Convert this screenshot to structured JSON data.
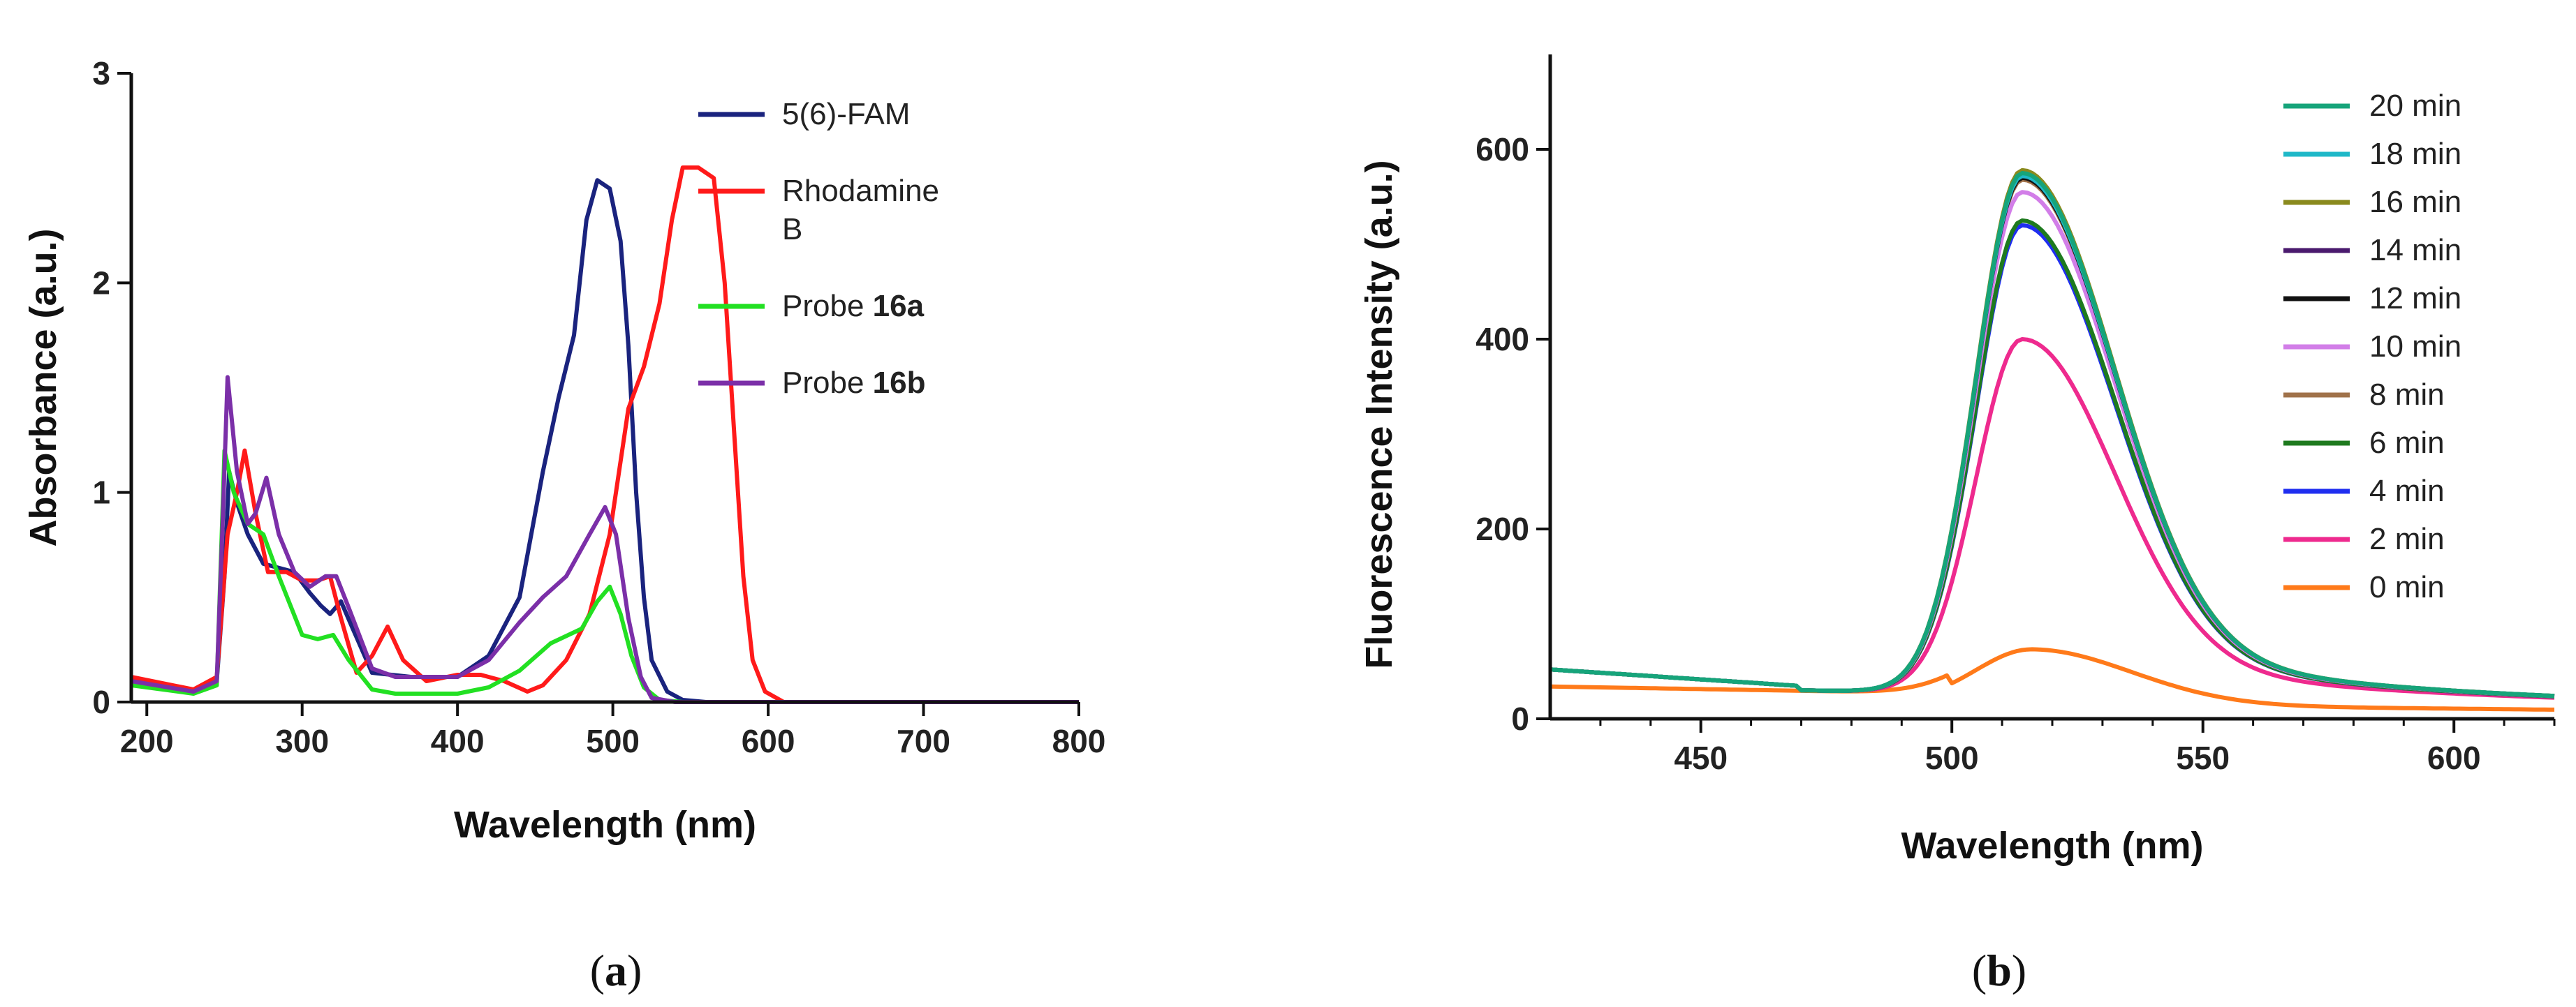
{
  "figure": {
    "panel_a_label": {
      "open": "(",
      "letter": "a",
      "close": ")"
    },
    "panel_b_label": {
      "open": "(",
      "letter": "b",
      "close": ")"
    }
  },
  "chart_data": [
    {
      "id": "a",
      "type": "line",
      "title": "",
      "xlabel": "Wavelength (nm)",
      "ylabel": "Absorbance (a.u.)",
      "xlim": [
        190,
        800
      ],
      "ylim": [
        0,
        3
      ],
      "xticks": [
        200,
        300,
        400,
        500,
        600,
        700,
        800
      ],
      "yticks": [
        0,
        1,
        2,
        3
      ],
      "grid": false,
      "legend": "top-right",
      "series": [
        {
          "name": "5(6)-FAM",
          "legend_lines": [
            {
              "text": "5(6)-FAM",
              "bold": ""
            }
          ],
          "color": "#1a237e",
          "points": [
            [
              190,
              0.1
            ],
            [
              230,
              0.05
            ],
            [
              245,
              0.1
            ],
            [
              250,
              0.6
            ],
            [
              253,
              1.1
            ],
            [
              258,
              0.95
            ],
            [
              265,
              0.8
            ],
            [
              275,
              0.66
            ],
            [
              285,
              0.64
            ],
            [
              295,
              0.62
            ],
            [
              305,
              0.52
            ],
            [
              312,
              0.46
            ],
            [
              318,
              0.42
            ],
            [
              325,
              0.48
            ],
            [
              332,
              0.36
            ],
            [
              345,
              0.14
            ],
            [
              370,
              0.12
            ],
            [
              400,
              0.12
            ],
            [
              420,
              0.22
            ],
            [
              440,
              0.5
            ],
            [
              455,
              1.1
            ],
            [
              465,
              1.45
            ],
            [
              475,
              1.75
            ],
            [
              483,
              2.3
            ],
            [
              490,
              2.49
            ],
            [
              498,
              2.45
            ],
            [
              505,
              2.2
            ],
            [
              510,
              1.7
            ],
            [
              515,
              1.0
            ],
            [
              520,
              0.5
            ],
            [
              525,
              0.2
            ],
            [
              535,
              0.05
            ],
            [
              545,
              0.01
            ],
            [
              560,
              0.0
            ],
            [
              800,
              0.0
            ]
          ]
        },
        {
          "name": "Rhodamine B",
          "legend_lines": [
            {
              "text": "Rhodamine",
              "bold": ""
            },
            {
              "text": "B",
              "bold": ""
            }
          ],
          "color": "#ff1a1a",
          "points": [
            [
              190,
              0.12
            ],
            [
              230,
              0.06
            ],
            [
              245,
              0.12
            ],
            [
              252,
              0.8
            ],
            [
              258,
              1.0
            ],
            [
              263,
              1.2
            ],
            [
              270,
              0.9
            ],
            [
              278,
              0.62
            ],
            [
              290,
              0.62
            ],
            [
              300,
              0.58
            ],
            [
              310,
              0.58
            ],
            [
              318,
              0.6
            ],
            [
              325,
              0.4
            ],
            [
              335,
              0.14
            ],
            [
              345,
              0.22
            ],
            [
              355,
              0.36
            ],
            [
              365,
              0.2
            ],
            [
              380,
              0.1
            ],
            [
              400,
              0.13
            ],
            [
              415,
              0.13
            ],
            [
              430,
              0.1
            ],
            [
              445,
              0.05
            ],
            [
              455,
              0.08
            ],
            [
              470,
              0.2
            ],
            [
              485,
              0.42
            ],
            [
              498,
              0.8
            ],
            [
              510,
              1.4
            ],
            [
              520,
              1.6
            ],
            [
              530,
              1.9
            ],
            [
              538,
              2.3
            ],
            [
              545,
              2.55
            ],
            [
              555,
              2.55
            ],
            [
              565,
              2.5
            ],
            [
              572,
              2.0
            ],
            [
              578,
              1.3
            ],
            [
              584,
              0.6
            ],
            [
              590,
              0.2
            ],
            [
              598,
              0.05
            ],
            [
              610,
              0.0
            ],
            [
              800,
              0.0
            ]
          ]
        },
        {
          "name": "Probe 16a",
          "legend_lines": [
            {
              "text": "Probe ",
              "bold": "16a"
            }
          ],
          "color": "#22e022",
          "points": [
            [
              190,
              0.08
            ],
            [
              230,
              0.04
            ],
            [
              245,
              0.08
            ],
            [
              250,
              1.2
            ],
            [
              256,
              1.0
            ],
            [
              265,
              0.85
            ],
            [
              275,
              0.8
            ],
            [
              285,
              0.6
            ],
            [
              300,
              0.32
            ],
            [
              310,
              0.3
            ],
            [
              320,
              0.32
            ],
            [
              330,
              0.2
            ],
            [
              345,
              0.06
            ],
            [
              360,
              0.04
            ],
            [
              400,
              0.04
            ],
            [
              420,
              0.07
            ],
            [
              440,
              0.15
            ],
            [
              460,
              0.28
            ],
            [
              480,
              0.35
            ],
            [
              490,
              0.48
            ],
            [
              498,
              0.55
            ],
            [
              505,
              0.42
            ],
            [
              512,
              0.22
            ],
            [
              520,
              0.07
            ],
            [
              530,
              0.01
            ],
            [
              545,
              0.0
            ],
            [
              800,
              0.0
            ]
          ]
        },
        {
          "name": "Probe 16b",
          "legend_lines": [
            {
              "text": "Probe ",
              "bold": "16b"
            }
          ],
          "color": "#7b2fa8",
          "points": [
            [
              190,
              0.1
            ],
            [
              230,
              0.05
            ],
            [
              245,
              0.1
            ],
            [
              249,
              0.9
            ],
            [
              252,
              1.55
            ],
            [
              258,
              1.1
            ],
            [
              265,
              0.85
            ],
            [
              270,
              0.9
            ],
            [
              277,
              1.07
            ],
            [
              285,
              0.8
            ],
            [
              295,
              0.62
            ],
            [
              305,
              0.55
            ],
            [
              315,
              0.6
            ],
            [
              322,
              0.6
            ],
            [
              330,
              0.45
            ],
            [
              345,
              0.16
            ],
            [
              360,
              0.12
            ],
            [
              400,
              0.12
            ],
            [
              420,
              0.2
            ],
            [
              440,
              0.38
            ],
            [
              455,
              0.5
            ],
            [
              470,
              0.6
            ],
            [
              485,
              0.8
            ],
            [
              495,
              0.93
            ],
            [
              502,
              0.8
            ],
            [
              510,
              0.4
            ],
            [
              518,
              0.12
            ],
            [
              525,
              0.02
            ],
            [
              540,
              0.0
            ],
            [
              800,
              0.0
            ]
          ]
        }
      ]
    },
    {
      "id": "b",
      "type": "line",
      "title": "",
      "xlabel": "Wavelength (nm)",
      "ylabel": "Fluorescence Intensity (a.u.)",
      "xlim": [
        420,
        620
      ],
      "ylim": [
        0,
        700
      ],
      "xticks": [
        450,
        500,
        550,
        600
      ],
      "yticks": [
        0,
        200,
        400,
        600
      ],
      "grid": false,
      "legend": "top-right",
      "series": [
        {
          "name": "20 min",
          "color": "#16a47a",
          "peak": 575
        },
        {
          "name": "18 min",
          "color": "#1fb8c8",
          "peak": 572
        },
        {
          "name": "16 min",
          "color": "#8a8a1e",
          "peak": 578
        },
        {
          "name": "14 min",
          "color": "#4a1a6e",
          "peak": 574
        },
        {
          "name": "12 min",
          "color": "#111111",
          "peak": 570
        },
        {
          "name": "10 min",
          "color": "#d27ee8",
          "peak": 555
        },
        {
          "name": "8 min",
          "color": "#a0724a",
          "peak": 568
        },
        {
          "name": "6 min",
          "color": "#1e7a1e",
          "peak": 525
        },
        {
          "name": "4 min",
          "color": "#1f2ef0",
          "peak": 520
        },
        {
          "name": "2 min",
          "color": "#ee2a8e",
          "peak": 400
        },
        {
          "name": "0 min",
          "color": "#ff7a1a",
          "peak": 72
        }
      ]
    }
  ]
}
